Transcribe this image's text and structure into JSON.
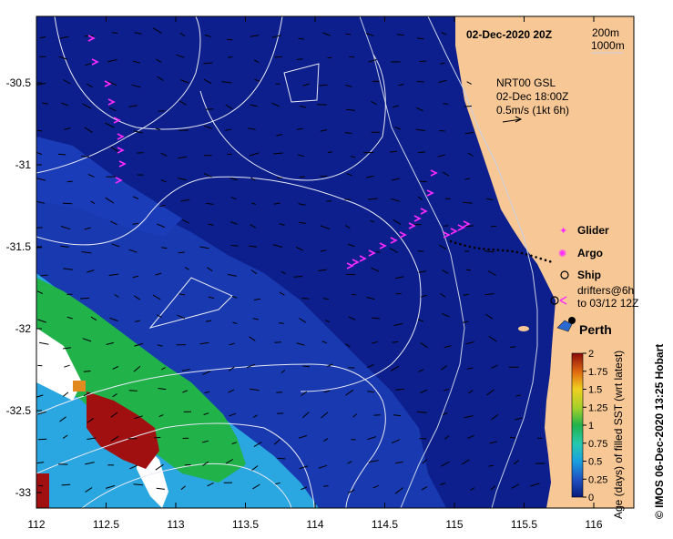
{
  "map": {
    "title": "02-Dec-2020 20Z",
    "depth_contours": [
      "200m",
      "1000m"
    ],
    "current_product": {
      "line1": "NRT00 GSL",
      "line2": "02-Dec 18:00Z",
      "line3": "0.5m/s (1kt 6h)"
    },
    "legend": {
      "glider": "Glider",
      "argo": "Argo",
      "ship": "Ship",
      "drifters_line1": "drifters@6h",
      "drifters_line2": "to 03/12 12Z"
    },
    "city": "Perth",
    "x_ticks": [
      "112",
      "112.5",
      "113",
      "113.5",
      "114",
      "114.5",
      "115",
      "115.5",
      "116"
    ],
    "y_ticks": [
      "-30.5",
      "-31",
      "-31.5",
      "-32",
      "-32.5",
      "-33"
    ],
    "colorbar": {
      "label": "Age (days) of filled SST (wrt latest)",
      "ticks": [
        "2",
        "1.75",
        "1.5",
        "1.25",
        "1",
        "0.75",
        "0.5",
        "0.25",
        "0"
      ]
    },
    "credit": "© IMOS 06-Dec-2020 13:25 Hobart",
    "colors": {
      "ocean": "#0d1f8c",
      "land": "#f7c795",
      "green": "#21b24a",
      "cyan": "#2aa6e0",
      "red": "#a01010",
      "magenta": "#ff2bff"
    }
  }
}
